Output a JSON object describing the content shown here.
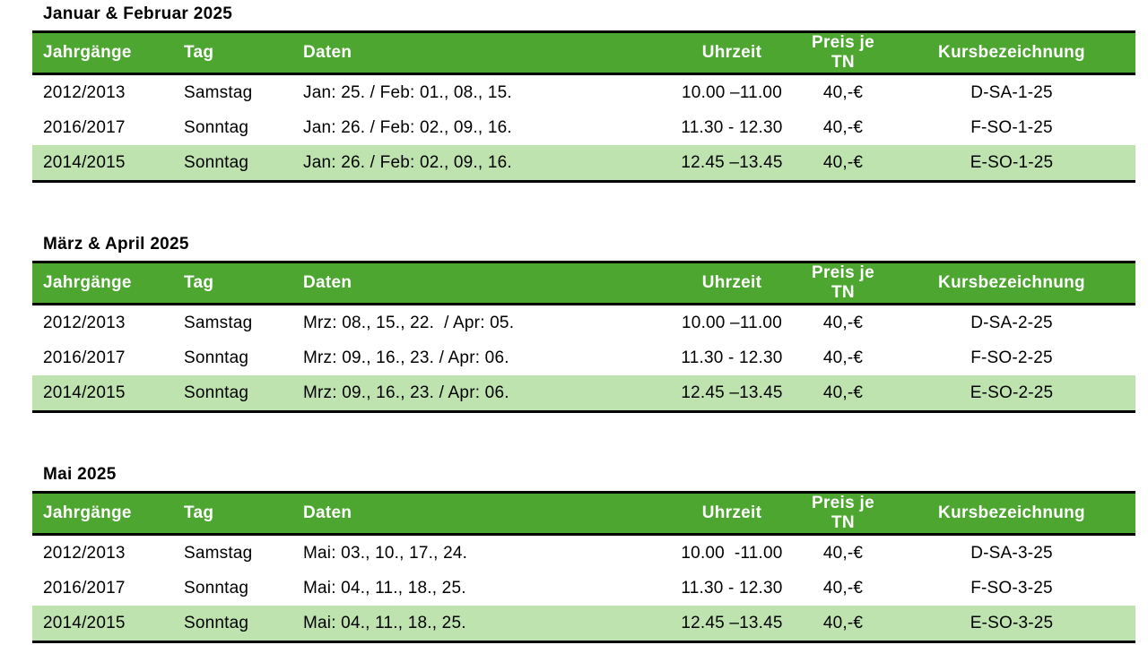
{
  "colors": {
    "header_bg": "#4da62f",
    "header_text": "#ffffff",
    "highlight_row_bg": "#bfe3af",
    "border": "#000000",
    "body_text": "#000000"
  },
  "columns": [
    "Jahrgänge",
    "Tag",
    "Daten",
    "Uhrzeit",
    "Preis je TN",
    "Kursbezeichnung"
  ],
  "sections": [
    {
      "title": "Januar & Februar 2025",
      "rows": [
        {
          "jahrgaenge": "2012/2013",
          "tag": "Samstag",
          "daten": "Jan: 25. / Feb: 01., 08., 15.",
          "uhrzeit": "10.00 –11.00",
          "preis": "40,-€",
          "kurs": "D-SA-1-25",
          "highlighted": false
        },
        {
          "jahrgaenge": "2016/2017",
          "tag": "Sonntag",
          "daten": "Jan: 26. / Feb: 02., 09., 16.",
          "uhrzeit": "11.30 - 12.30",
          "preis": "40,-€",
          "kurs": "F-SO-1-25",
          "highlighted": false
        },
        {
          "jahrgaenge": "2014/2015",
          "tag": "Sonntag",
          "daten": "Jan: 26. / Feb: 02., 09., 16.",
          "uhrzeit": "12.45 –13.45",
          "preis": "40,-€",
          "kurs": "E-SO-1-25",
          "highlighted": true
        }
      ]
    },
    {
      "title": "März & April 2025",
      "rows": [
        {
          "jahrgaenge": "2012/2013",
          "tag": "Samstag",
          "daten": "Mrz: 08., 15., 22.  / Apr: 05.",
          "uhrzeit": "10.00 –11.00",
          "preis": "40,-€",
          "kurs": "D-SA-2-25",
          "highlighted": false
        },
        {
          "jahrgaenge": "2016/2017",
          "tag": "Sonntag",
          "daten": "Mrz: 09., 16., 23. / Apr: 06.",
          "uhrzeit": "11.30 - 12.30",
          "preis": "40,-€",
          "kurs": "F-SO-2-25",
          "highlighted": false
        },
        {
          "jahrgaenge": "2014/2015",
          "tag": "Sonntag",
          "daten": "Mrz: 09., 16., 23. / Apr: 06.",
          "uhrzeit": "12.45 –13.45",
          "preis": "40,-€",
          "kurs": "E-SO-2-25",
          "highlighted": true
        }
      ]
    },
    {
      "title": "Mai 2025",
      "rows": [
        {
          "jahrgaenge": "2012/2013",
          "tag": "Samstag",
          "daten": "Mai: 03., 10., 17., 24.",
          "uhrzeit": "10.00  -11.00",
          "preis": "40,-€",
          "kurs": "D-SA-3-25",
          "highlighted": false
        },
        {
          "jahrgaenge": "2016/2017",
          "tag": "Sonntag",
          "daten": "Mai: 04., 11., 18., 25.",
          "uhrzeit": "11.30 - 12.30",
          "preis": "40,-€",
          "kurs": "F-SO-3-25",
          "highlighted": false
        },
        {
          "jahrgaenge": "2014/2015",
          "tag": "Sonntag",
          "daten": "Mai: 04., 11., 18., 25.",
          "uhrzeit": "12.45 –13.45",
          "preis": "40,-€",
          "kurs": "E-SO-3-25",
          "highlighted": true
        }
      ]
    }
  ]
}
